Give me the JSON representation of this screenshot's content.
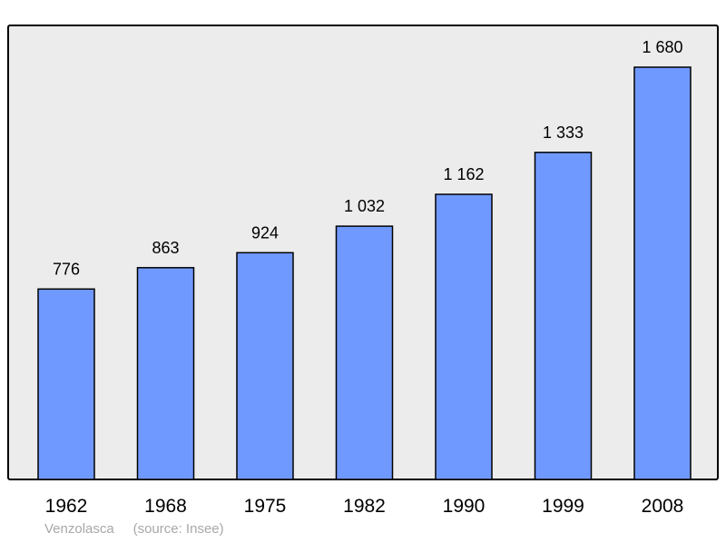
{
  "chart_data": {
    "type": "bar",
    "categories": [
      "1962",
      "1968",
      "1975",
      "1982",
      "1990",
      "1999",
      "2008"
    ],
    "values": [
      776,
      863,
      924,
      1032,
      1162,
      1333,
      1680
    ],
    "value_labels": [
      "776",
      "863",
      "924",
      "1 032",
      "1 162",
      "1 333",
      "1 680"
    ],
    "ylim": [
      0,
      1800
    ],
    "grid": false,
    "colors": {
      "bar_fill": "#7099ff",
      "bar_stroke": "#000000",
      "plot_background": "#ececec",
      "frame": "#000000"
    }
  },
  "caption": {
    "place": "Venzolasca",
    "source": "(source: Insee)"
  }
}
